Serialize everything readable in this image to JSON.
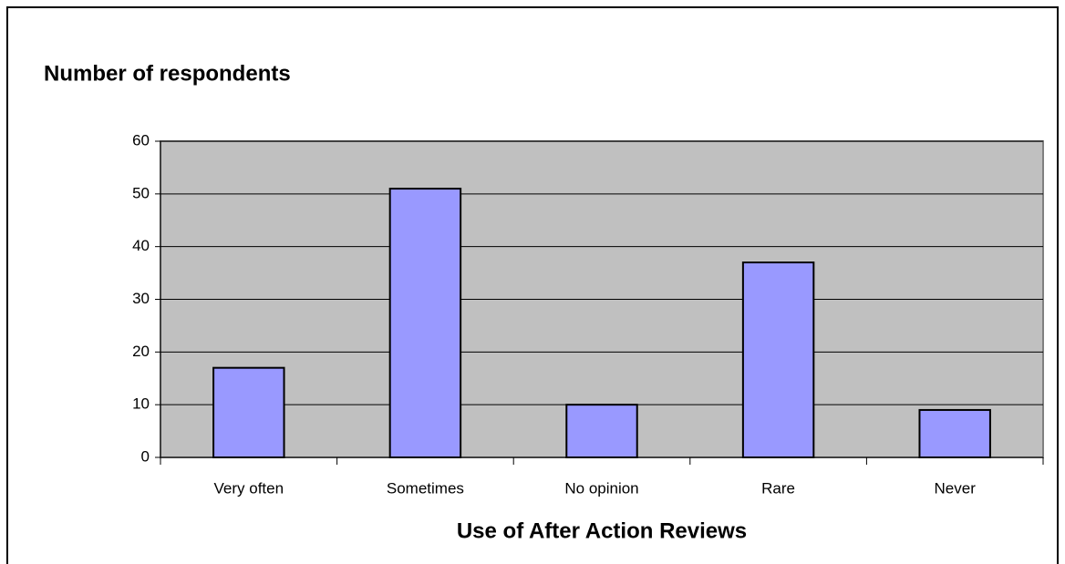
{
  "chart_data": {
    "type": "bar",
    "ylabel": "Number of respondents",
    "xlabel": "Use of After Action Reviews",
    "categories": [
      "Very often",
      "Sometimes",
      "No opinion",
      "Rare",
      "Never"
    ],
    "values": [
      17,
      51,
      10,
      37,
      9
    ],
    "color": "#9999ff",
    "ylim": [
      0,
      60
    ],
    "yticks": [
      0,
      10,
      20,
      30,
      40,
      50,
      60
    ],
    "grid": true
  }
}
